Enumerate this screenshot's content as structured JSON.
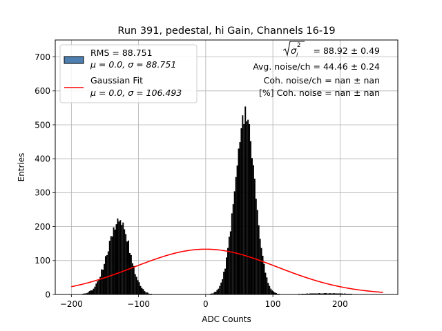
{
  "chart_data": {
    "type": "bar",
    "title": "Run 391, pedestal, hi Gain, Channels 16-19",
    "xlabel": "ADC Counts",
    "ylabel": "Entries",
    "xlim": [
      -224,
      286
    ],
    "ylim": [
      0,
      750
    ],
    "xticks": [
      -200,
      -100,
      0,
      100,
      200
    ],
    "xtick_labels": [
      "−200",
      "−100",
      "0",
      "100",
      "200"
    ],
    "yticks": [
      0,
      100,
      200,
      300,
      400,
      500,
      600,
      700
    ],
    "ytick_labels": [
      "0",
      "100",
      "200",
      "300",
      "400",
      "500",
      "600",
      "700"
    ],
    "grid": true,
    "legend_position": "upper-left",
    "annotations_position": "upper-right",
    "legend": [
      {
        "kind": "histogram",
        "line1": "RMS = 88.751",
        "line2": "μ = 0.0, σ = 88.751",
        "color": "#4e7fb0"
      },
      {
        "kind": "line",
        "line1": "Gaussian Fit",
        "line2": "μ = 0.0, σ = 106.493",
        "color": "#ff0000"
      }
    ],
    "annotations": [
      "= 88.92 ± 0.49",
      "Avg. noise/ch = 44.46 ± 0.24",
      "Coh. noise/ch = nan ± nan",
      "[%] Coh. noise = nan ± nan"
    ],
    "annotation_sqrt": {
      "symbol": "σ",
      "sub": "i",
      "sup": "2"
    },
    "series": [
      {
        "kind": "histogram",
        "color": "#000000",
        "bin_width": 2,
        "bins_x": [
          -190,
          -188,
          -186,
          -184,
          -182,
          -180,
          -178,
          -176,
          -174,
          -172,
          -170,
          -168,
          -166,
          -164,
          -162,
          -160,
          -158,
          -156,
          -154,
          -152,
          -150,
          -148,
          -146,
          -144,
          -142,
          -140,
          -138,
          -136,
          -134,
          -132,
          -130,
          -128,
          -126,
          -124,
          -122,
          -120,
          -118,
          -116,
          -114,
          -112,
          -110,
          -108,
          -106,
          -104,
          -102,
          -100,
          -98,
          -96,
          -94,
          -92,
          -90,
          -88,
          -86,
          -84,
          -82,
          -80,
          -78,
          -76,
          -74,
          -72,
          -70,
          -68,
          -66,
          -64,
          -62,
          -60,
          -58,
          -56,
          -54,
          -52,
          -50,
          -48,
          -46,
          -44,
          -42,
          -40,
          -38,
          -36,
          -34,
          -32,
          -30,
          -28,
          -26,
          -24,
          -22,
          -20,
          -18,
          -16,
          -14,
          -12,
          -10,
          -8,
          -6,
          -4,
          -2,
          0,
          2,
          4,
          6,
          8,
          10,
          12,
          14,
          16,
          18,
          20,
          22,
          24,
          26,
          28,
          30,
          32,
          34,
          36,
          38,
          40,
          42,
          44,
          46,
          48,
          50,
          52,
          54,
          56,
          58,
          60,
          62,
          64,
          66,
          68,
          70,
          72,
          74,
          76,
          78,
          80,
          82,
          84,
          86,
          88,
          90,
          92,
          94,
          96,
          98,
          100,
          102,
          104,
          106,
          108,
          110,
          112,
          114,
          116,
          118,
          120,
          122,
          124,
          126,
          128,
          130,
          132,
          134,
          136,
          138,
          140,
          142,
          144,
          146,
          148,
          150,
          152,
          154,
          156,
          158,
          160,
          162,
          164,
          166,
          168,
          170,
          172,
          174,
          176,
          178,
          180,
          182,
          184,
          186,
          188,
          190,
          192,
          194,
          196,
          198,
          200,
          202,
          204,
          206,
          208,
          210,
          212,
          214,
          216,
          218,
          220,
          222,
          224,
          226,
          228,
          230,
          232,
          234,
          236,
          238,
          240
        ],
        "counts": [
          1,
          1,
          1,
          2,
          3,
          3,
          4,
          6,
          10,
          12,
          12,
          17,
          23,
          32,
          39,
          44,
          52,
          74,
          73,
          90,
          113,
          116,
          127,
          158,
          172,
          171,
          198,
          191,
          207,
          224,
          215,
          219,
          205,
          212,
          192,
          178,
          156,
          159,
          122,
          116,
          92,
          84,
          60,
          52,
          42,
          36,
          25,
          19,
          16,
          10,
          6,
          6,
          3,
          2,
          2,
          1,
          1,
          0,
          0,
          0,
          0,
          0,
          0,
          0,
          0,
          0,
          0,
          0,
          0,
          0,
          0,
          0,
          0,
          0,
          0,
          0,
          0,
          0,
          0,
          0,
          0,
          0,
          0,
          0,
          0,
          0,
          0,
          0,
          0,
          0,
          0,
          0,
          0,
          0,
          0,
          1,
          1,
          1,
          2,
          3,
          3,
          7,
          8,
          13,
          17,
          25,
          35,
          45,
          67,
          76,
          109,
          137,
          170,
          186,
          239,
          266,
          304,
          346,
          380,
          430,
          449,
          490,
          528,
          502,
          554,
          510,
          515,
          502,
          452,
          402,
          381,
          341,
          282,
          249,
          204,
          164,
          137,
          114,
          90,
          64,
          50,
          34,
          25,
          17,
          12,
          9,
          6,
          4,
          2,
          2,
          1,
          1,
          1,
          1,
          1,
          1,
          1,
          1,
          1,
          1,
          1,
          1,
          1,
          1,
          2,
          1,
          2,
          2,
          2,
          2,
          3,
          2,
          3,
          3,
          3,
          3,
          3,
          3,
          3,
          4,
          3,
          3,
          3,
          4,
          4,
          3,
          3,
          4,
          3,
          3,
          4,
          3,
          3,
          3,
          3,
          3,
          3,
          2,
          3,
          2,
          2,
          2,
          2,
          2,
          1,
          1,
          1,
          1,
          1,
          1,
          1
        ]
      },
      {
        "kind": "gaussian",
        "name": "Gaussian Fit",
        "color": "#ff0000",
        "amplitude": 133.4,
        "mu": 0.0,
        "sigma": 106.493,
        "x_range": [
          -200,
          264
        ]
      }
    ]
  }
}
